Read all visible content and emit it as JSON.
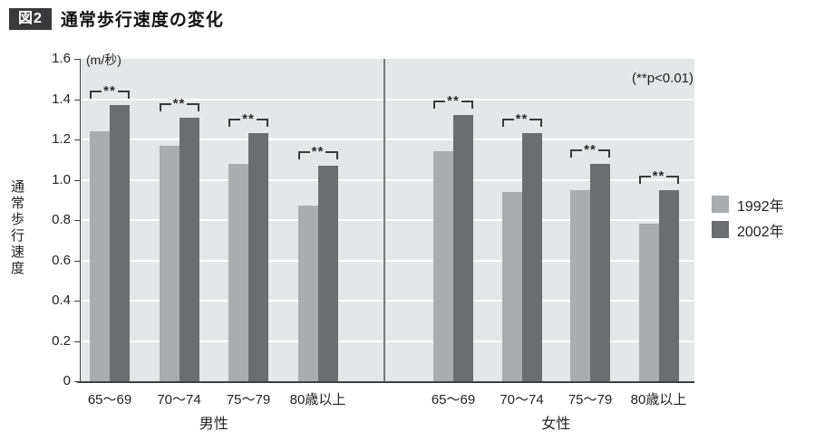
{
  "title": {
    "tag": "図2",
    "text": "通常歩行速度の変化"
  },
  "chart_data": {
    "type": "bar",
    "title": "通常歩行速度の変化",
    "ylabel": "通常歩行速度",
    "unit_label": "(m/秒)",
    "annotation": "(**p<0.01)",
    "significance_marker": "**",
    "ylim": [
      0,
      1.6
    ],
    "ytick_step": 0.2,
    "yticks": [
      "1.6",
      "1.4",
      "1.2",
      "1.0",
      "0.8",
      "0.6",
      "0.4",
      "0.2",
      "0"
    ],
    "grid": "horizontal white lines on light gray plot background",
    "legend_position": "right",
    "legend": [
      {
        "label": "1992年",
        "color": "#aaacaf"
      },
      {
        "label": "2002年",
        "color": "#6b6d70"
      }
    ],
    "panels": [
      {
        "label": "男性",
        "categories": [
          "65〜69",
          "70〜74",
          "75〜79",
          "80歳以上"
        ],
        "series": [
          {
            "name": "1992年",
            "values": [
              1.24,
              1.17,
              1.08,
              0.87
            ]
          },
          {
            "name": "2002年",
            "values": [
              1.37,
              1.31,
              1.23,
              1.07
            ]
          }
        ],
        "significance": [
          "**",
          "**",
          "**",
          "**"
        ]
      },
      {
        "label": "女性",
        "categories": [
          "65〜69",
          "70〜74",
          "75〜79",
          "80歳以上"
        ],
        "series": [
          {
            "name": "1992年",
            "values": [
              1.14,
              0.94,
              0.95,
              0.78
            ]
          },
          {
            "name": "2002年",
            "values": [
              1.32,
              1.23,
              1.08,
              0.95
            ]
          }
        ],
        "significance": [
          "**",
          "**",
          "**",
          "**"
        ]
      }
    ]
  },
  "colors": {
    "plot_bg": "#e5e6e8",
    "gridline": "#ffffff",
    "bar_1992": "#aaacaf",
    "bar_2002": "#6b6d70",
    "axis": "#3f4043",
    "divider": "#77787b",
    "bracket": "#3a3a3c",
    "title_tag_bg": "#3a3a3c",
    "title_tag_fg": "#ffffff",
    "text": "#222222"
  }
}
